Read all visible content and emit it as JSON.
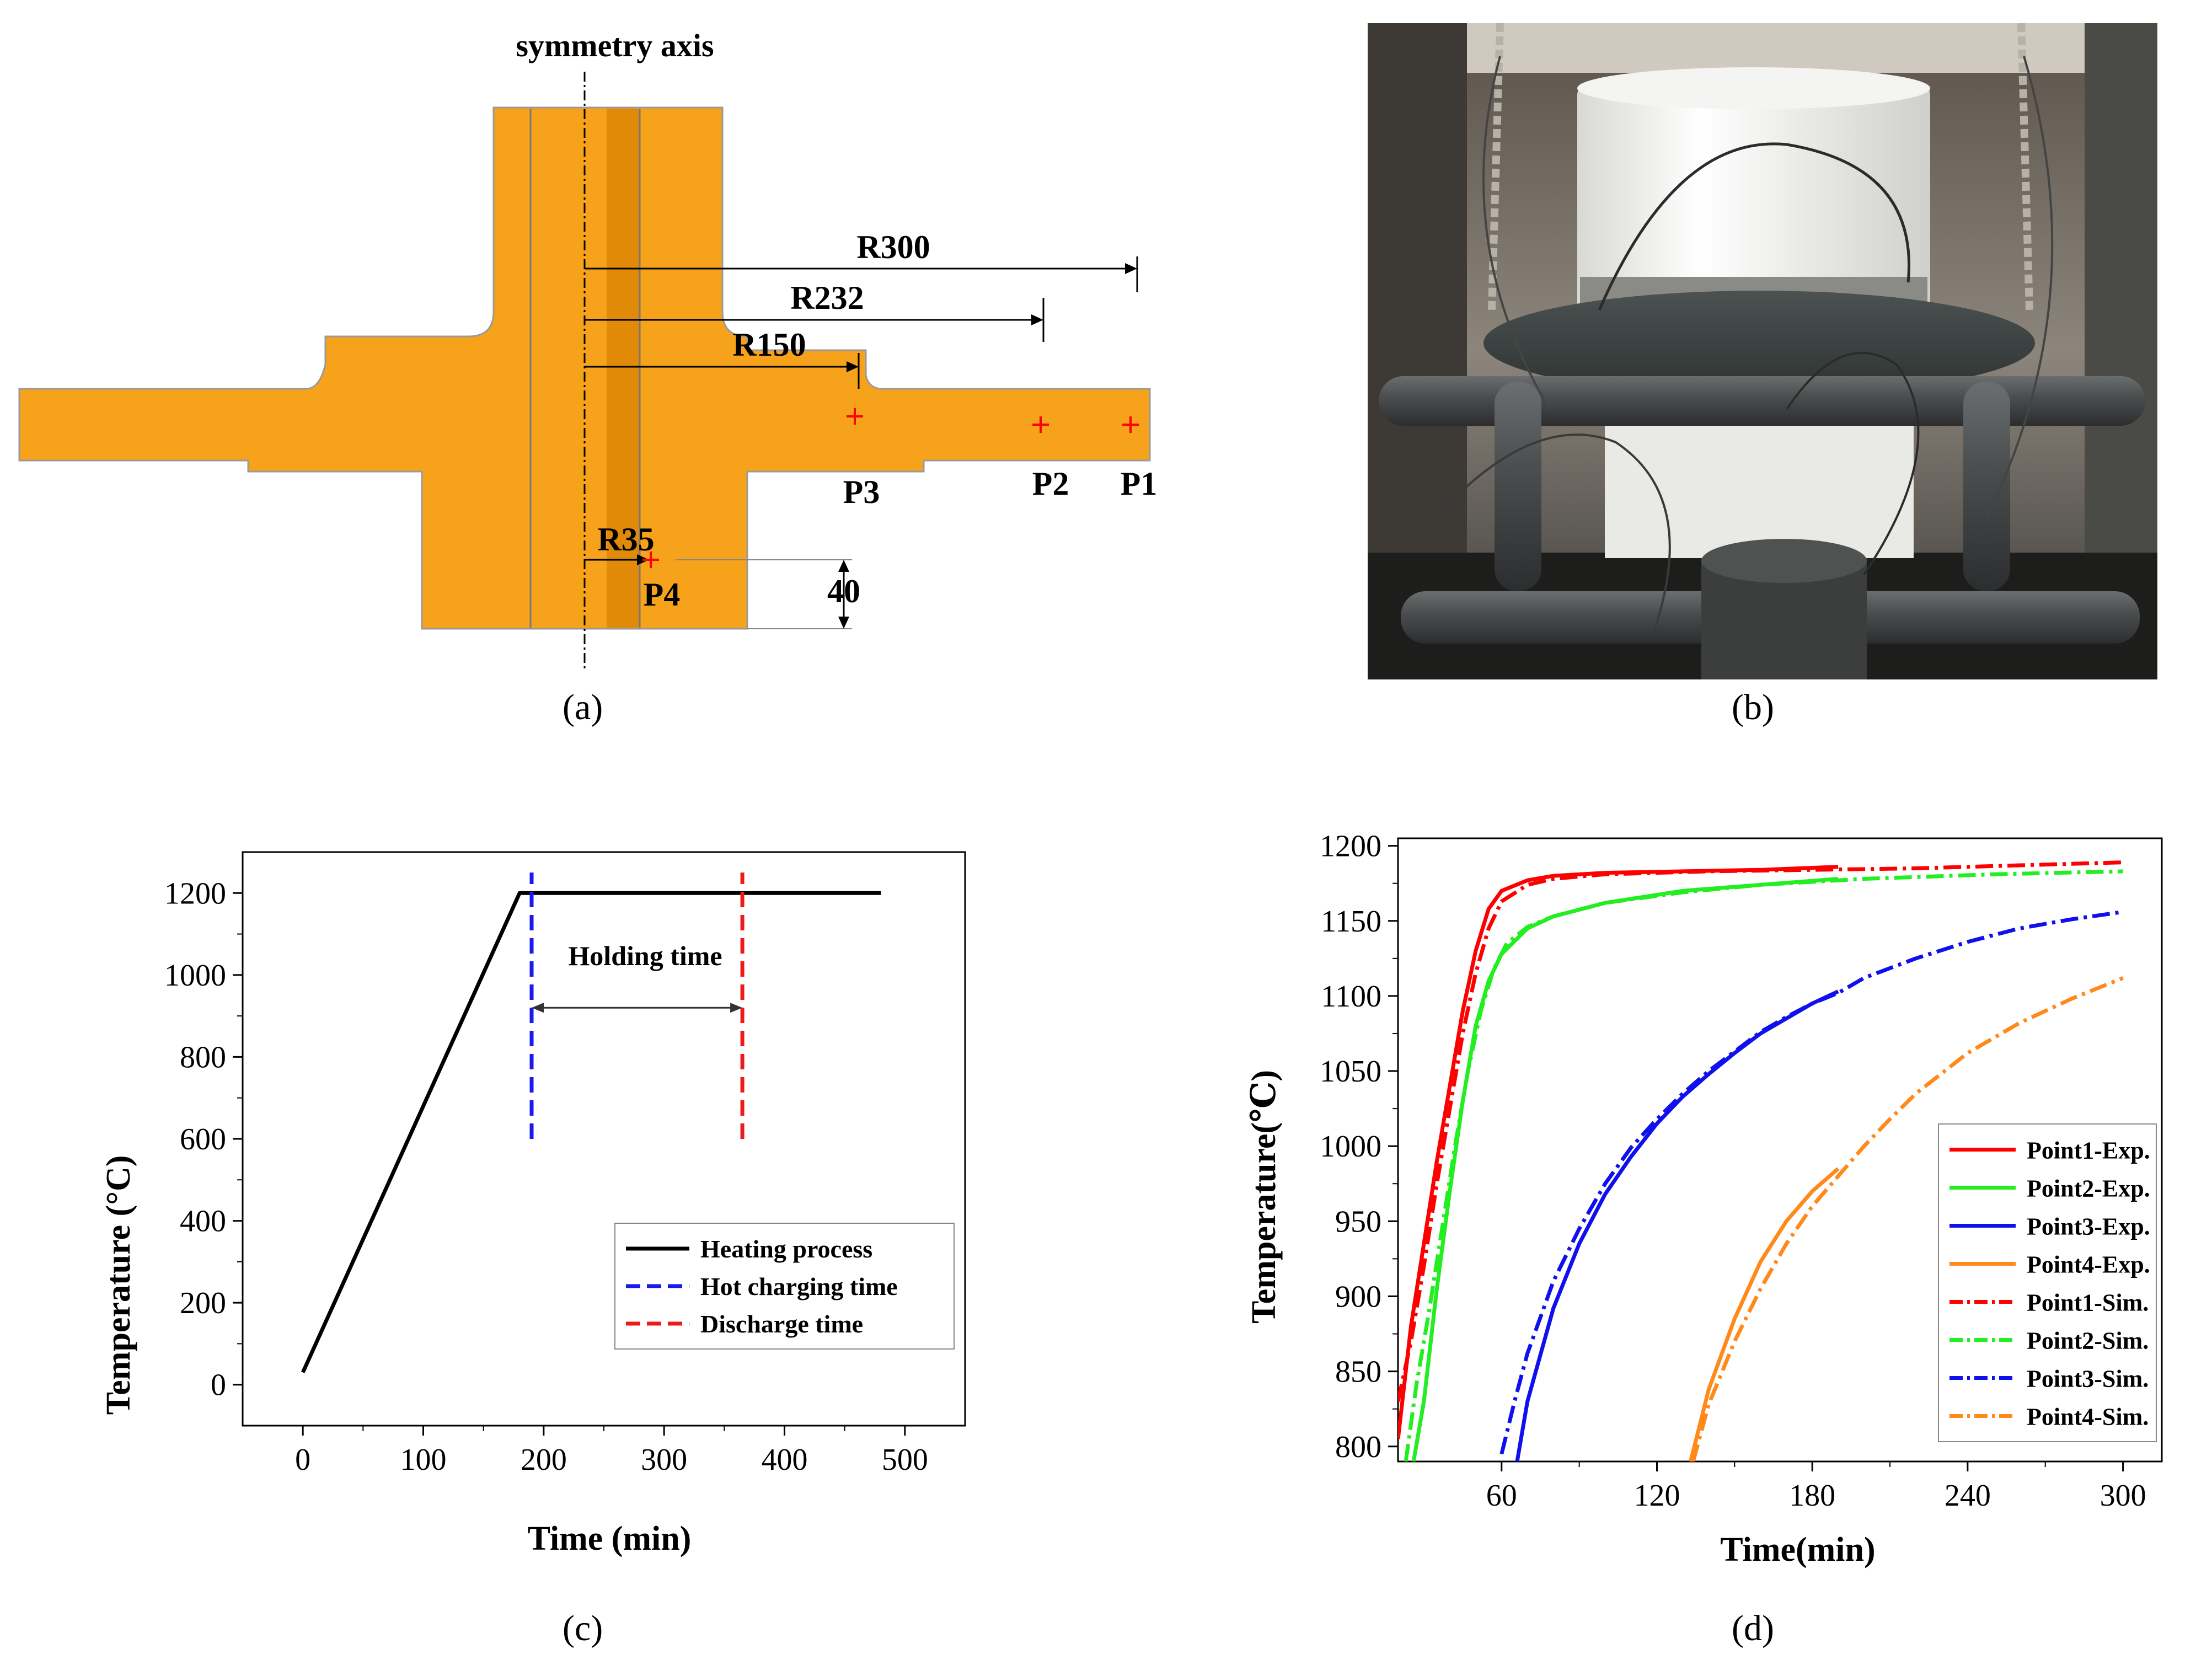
{
  "panel_labels": {
    "a": "(a)",
    "b": "(b)",
    "c": "(c)",
    "d": "(d)"
  },
  "colors": {
    "part_fill": "#F7A21B",
    "part_shade": "#E08A08",
    "marker": "#FF0000",
    "point1": "#FF0000",
    "point2": "#22EE22",
    "point3": "#1010EE",
    "point4": "#FF8A1A"
  },
  "panel_a": {
    "title": "symmetry axis",
    "dims": {
      "r300": "R300",
      "r232": "R232",
      "r150": "R150",
      "r35": "R35",
      "h40": "40"
    },
    "points": {
      "p1": "P1",
      "p2": "P2",
      "p3": "P3",
      "p4": "P4"
    }
  },
  "panel_b": {
    "description_icon": "photo-furnace-specimen"
  },
  "chart_data": [
    {
      "id": "c",
      "type": "line",
      "xlabel": "Time (min)",
      "ylabel": "Temperature (°C)",
      "xlim": [
        -50,
        550
      ],
      "ylim": [
        -100,
        1300
      ],
      "xticks": [
        0,
        100,
        200,
        300,
        400,
        500
      ],
      "yticks": [
        0,
        200,
        400,
        600,
        800,
        1000,
        1200
      ],
      "annotation": "Holding time",
      "holding_arrow": {
        "from": 190,
        "to": 365,
        "y": 920
      },
      "series": [
        {
          "name": "Heating process",
          "color": "#000000",
          "dash": "solid",
          "points": [
            [
              0,
              30
            ],
            [
              180,
              1200
            ],
            [
              480,
              1200
            ]
          ]
        },
        {
          "name": "Hot charging time",
          "color": "#1A1AEE",
          "dash": "dashed",
          "points": [
            [
              190,
              600
            ],
            [
              190,
              1250
            ]
          ]
        },
        {
          "name": "Discharge time",
          "color": "#EE1A1A",
          "dash": "dashed",
          "points": [
            [
              365,
              600
            ],
            [
              365,
              1250
            ]
          ]
        }
      ],
      "legend_position": "lower-right"
    },
    {
      "id": "d",
      "type": "line",
      "xlabel": "Time(min)",
      "ylabel": "Temperature(℃)",
      "xlim": [
        20,
        315
      ],
      "ylim": [
        790,
        1205
      ],
      "xticks": [
        60,
        120,
        180,
        240,
        300
      ],
      "yticks": [
        800,
        850,
        900,
        950,
        1000,
        1050,
        1100,
        1150,
        1200
      ],
      "legend_position": "lower-right",
      "series": [
        {
          "name": "Point1-Exp.",
          "color": "#FF0000",
          "dash": "solid",
          "points": [
            [
              20,
              805
            ],
            [
              25,
              880
            ],
            [
              30,
              935
            ],
            [
              35,
              990
            ],
            [
              40,
              1040
            ],
            [
              45,
              1090
            ],
            [
              50,
              1130
            ],
            [
              55,
              1158
            ],
            [
              60,
              1170
            ],
            [
              70,
              1177
            ],
            [
              80,
              1180
            ],
            [
              100,
              1182
            ],
            [
              130,
              1183
            ],
            [
              160,
              1184
            ],
            [
              190,
              1186
            ]
          ]
        },
        {
          "name": "Point2-Exp.",
          "color": "#22EE22",
          "dash": "solid",
          "points": [
            [
              26,
              790
            ],
            [
              30,
              830
            ],
            [
              35,
              905
            ],
            [
              40,
              970
            ],
            [
              45,
              1030
            ],
            [
              50,
              1080
            ],
            [
              55,
              1110
            ],
            [
              60,
              1128
            ],
            [
              70,
              1145
            ],
            [
              80,
              1153
            ],
            [
              100,
              1162
            ],
            [
              130,
              1170
            ],
            [
              160,
              1174
            ],
            [
              190,
              1178
            ]
          ]
        },
        {
          "name": "Point3-Exp.",
          "color": "#1010EE",
          "dash": "solid",
          "points": [
            [
              66,
              790
            ],
            [
              70,
              830
            ],
            [
              80,
              892
            ],
            [
              90,
              935
            ],
            [
              100,
              968
            ],
            [
              110,
              993
            ],
            [
              120,
              1015
            ],
            [
              130,
              1033
            ],
            [
              140,
              1048
            ],
            [
              150,
              1062
            ],
            [
              160,
              1075
            ],
            [
              170,
              1085
            ],
            [
              180,
              1095
            ],
            [
              190,
              1103
            ]
          ]
        },
        {
          "name": "Point4-Exp.",
          "color": "#FF8A1A",
          "dash": "solid",
          "points": [
            [
              133,
              790
            ],
            [
              140,
              838
            ],
            [
              150,
              885
            ],
            [
              160,
              923
            ],
            [
              170,
              950
            ],
            [
              180,
              970
            ],
            [
              190,
              985
            ]
          ]
        },
        {
          "name": "Point1-Sim.",
          "color": "#FF0000",
          "dash": "dashdot",
          "points": [
            [
              20,
              830
            ],
            [
              25,
              870
            ],
            [
              30,
              920
            ],
            [
              35,
              975
            ],
            [
              40,
              1025
            ],
            [
              45,
              1075
            ],
            [
              50,
              1115
            ],
            [
              55,
              1145
            ],
            [
              60,
              1163
            ],
            [
              70,
              1174
            ],
            [
              80,
              1178
            ],
            [
              100,
              1181
            ],
            [
              140,
              1183
            ],
            [
              180,
              1184
            ],
            [
              220,
              1185
            ],
            [
              260,
              1187
            ],
            [
              300,
              1189
            ]
          ]
        },
        {
          "name": "Point2-Sim.",
          "color": "#22EE22",
          "dash": "dashdot",
          "points": [
            [
              23,
              790
            ],
            [
              27,
              840
            ],
            [
              32,
              890
            ],
            [
              37,
              945
            ],
            [
              42,
              1000
            ],
            [
              47,
              1050
            ],
            [
              52,
              1090
            ],
            [
              57,
              1118
            ],
            [
              62,
              1135
            ],
            [
              70,
              1146
            ],
            [
              80,
              1153
            ],
            [
              100,
              1162
            ],
            [
              130,
              1169
            ],
            [
              160,
              1174
            ],
            [
              200,
              1178
            ],
            [
              250,
              1181
            ],
            [
              300,
              1183
            ]
          ]
        },
        {
          "name": "Point3-Sim.",
          "color": "#1010EE",
          "dash": "dashdot",
          "points": [
            [
              60,
              795
            ],
            [
              65,
              830
            ],
            [
              70,
              862
            ],
            [
              80,
              910
            ],
            [
              90,
              945
            ],
            [
              100,
              975
            ],
            [
              110,
              999
            ],
            [
              120,
              1018
            ],
            [
              130,
              1035
            ],
            [
              140,
              1050
            ],
            [
              150,
              1063
            ],
            [
              160,
              1076
            ],
            [
              170,
              1086
            ],
            [
              180,
              1095
            ],
            [
              190,
              1102
            ],
            [
              200,
              1112
            ],
            [
              220,
              1125
            ],
            [
              240,
              1136
            ],
            [
              260,
              1145
            ],
            [
              280,
              1151
            ],
            [
              300,
              1156
            ]
          ]
        },
        {
          "name": "Point4-Sim.",
          "color": "#FF8A1A",
          "dash": "dashdot",
          "points": [
            [
              134,
              790
            ],
            [
              140,
              828
            ],
            [
              150,
              870
            ],
            [
              160,
              905
            ],
            [
              170,
              935
            ],
            [
              180,
              960
            ],
            [
              190,
              980
            ],
            [
              200,
              1000
            ],
            [
              210,
              1018
            ],
            [
              220,
              1035
            ],
            [
              240,
              1062
            ],
            [
              260,
              1082
            ],
            [
              280,
              1098
            ],
            [
              300,
              1112
            ]
          ]
        }
      ]
    }
  ]
}
